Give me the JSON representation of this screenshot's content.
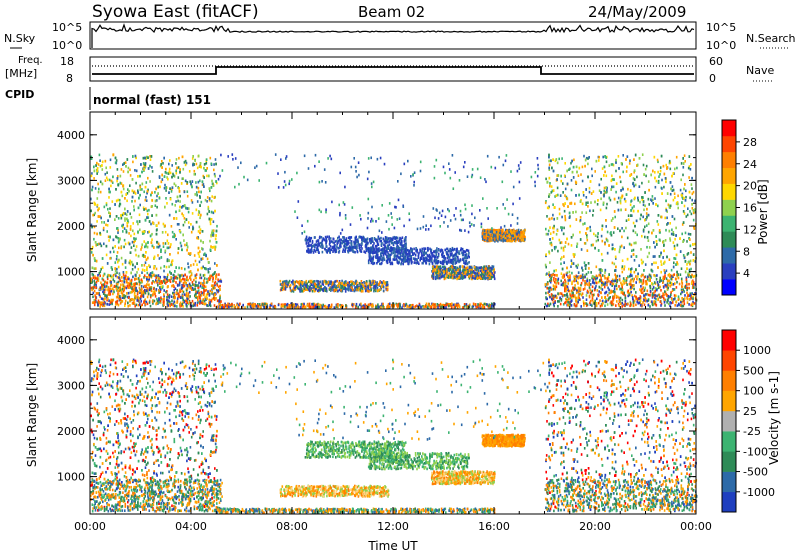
{
  "header": {
    "station": "Syowa East (fitACF)",
    "beam": "Beam 02",
    "date": "24/May/2009"
  },
  "panels": {
    "nsky": {
      "label": "N.Sky",
      "left_ticks": [
        "10^5",
        "10^0"
      ],
      "right_ticks": [
        "10^5",
        "10^0"
      ],
      "right_label": "N.Search"
    },
    "freq": {
      "label_line1": "Freq.",
      "label_line2": "[MHz]",
      "left_ticks": [
        "18",
        "8"
      ],
      "right_ticks": [
        "60",
        "0"
      ],
      "right_label": "Nave"
    },
    "cpid": {
      "label": "CPID",
      "mode_text": "normal (fast) 151"
    }
  },
  "chart_data": [
    {
      "type": "heatmap",
      "name": "Power",
      "ylabel": "Slant Range [km]",
      "xlabel": "",
      "xlim": [
        0,
        24
      ],
      "ylim": [
        180,
        4500
      ],
      "yticks": [
        1000,
        2000,
        3000,
        4000
      ],
      "colorbar": {
        "label": "Power [dB]",
        "range": [
          0,
          32
        ],
        "ticks": [
          "28",
          "24",
          "20",
          "16",
          "12",
          "8",
          "4"
        ],
        "colors": [
          "#0000ff",
          "#2a3fbf",
          "#2d6aa8",
          "#2e8b57",
          "#3cb371",
          "#8fd14f",
          "#ffd700",
          "#ffa500",
          "#ff7f00",
          "#ff4500",
          "#ff0000"
        ]
      },
      "echo_regions_range_km": [
        {
          "t_start": 0.0,
          "t_end": 5.0,
          "r_start": 200,
          "r_end": 3550,
          "level": "low-to-mid"
        },
        {
          "t_start": 5.0,
          "t_end": 18.0,
          "r_start": 180,
          "r_end": 3550,
          "level": "sparse"
        },
        {
          "t_start": 18.0,
          "t_end": 24.0,
          "r_start": 200,
          "r_end": 3550,
          "level": "low-to-mid"
        }
      ]
    },
    {
      "type": "heatmap",
      "name": "Velocity",
      "ylabel": "Slant Range [km]",
      "xlabel": "Time UT",
      "xlim": [
        0,
        24
      ],
      "ylim": [
        180,
        4500
      ],
      "yticks": [
        1000,
        2000,
        3000,
        4000
      ],
      "xticks": [
        "00:00",
        "04:00",
        "08:00",
        "12:00",
        "16:00",
        "20:00",
        "00:00"
      ],
      "colorbar": {
        "label": "Velocity [m s-1]",
        "ticks": [
          "1000",
          "500",
          "100",
          "25",
          "-25",
          "-100",
          "-500",
          "-1000"
        ],
        "colors": [
          "#1f3fbf",
          "#2d6aa8",
          "#2e8b57",
          "#3cb371",
          "#b0b0b0",
          "#ffa500",
          "#ff7f00",
          "#ff4500",
          "#ff0000"
        ]
      }
    }
  ]
}
